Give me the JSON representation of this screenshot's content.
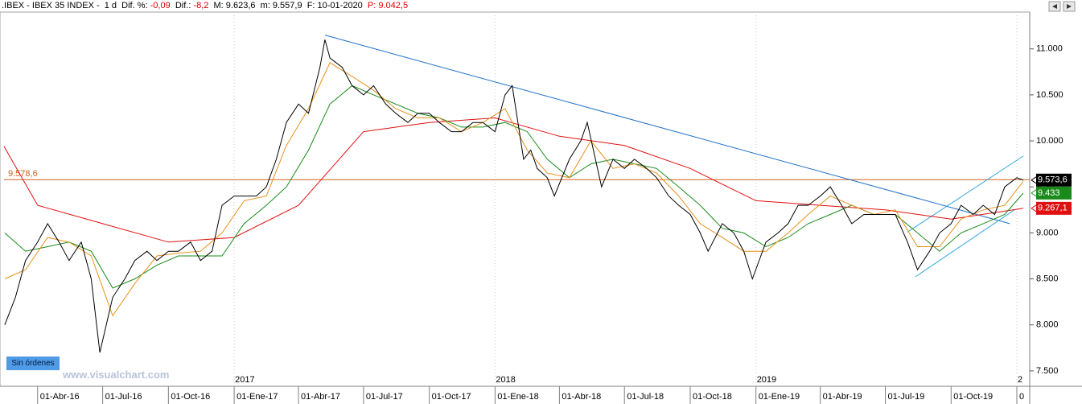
{
  "header": {
    "parts": [
      {
        "text": ".IBEX - IBEX 35 INDEX -  1 d  Dif. %: ",
        "color": "#000000"
      },
      {
        "text": "-0,09",
        "color": "#e00000"
      },
      {
        "text": "  Dif.: ",
        "color": "#000000"
      },
      {
        "text": "-8,2",
        "color": "#e00000"
      },
      {
        "text": "  M: 9.623,6  m: 9.557,9  F: 10-01-2020  ",
        "color": "#000000"
      },
      {
        "text": "P: 9.042,5",
        "color": "#e00000"
      }
    ]
  },
  "orders_button": "Sin órdenes",
  "watermark": "www.visualchart.com",
  "chart_data": {
    "type": "line",
    "xlim": [
      "2016-02-14",
      "2020-01-10"
    ],
    "ylim": [
      7350,
      11400
    ],
    "yticks": [
      {
        "value": 7500,
        "label": "7.500"
      },
      {
        "value": 8000,
        "label": "8.000"
      },
      {
        "value": 8500,
        "label": "8.500"
      },
      {
        "value": 9000,
        "label": "9.000"
      },
      {
        "value": 9500,
        "label": "9.500"
      },
      {
        "value": 10000,
        "label": "10.000"
      },
      {
        "value": 10500,
        "label": "10.500"
      },
      {
        "value": 11000,
        "label": "11.000"
      }
    ],
    "xticks": [
      {
        "value": "2016-04-01",
        "label": "01-Abr-16"
      },
      {
        "value": "2016-07-01",
        "label": "01-Jul-16"
      },
      {
        "value": "2016-10-01",
        "label": "01-Oct-16"
      },
      {
        "value": "2017-01-01",
        "label": "01-Ene-17"
      },
      {
        "value": "2017-04-01",
        "label": "01-Abr-17"
      },
      {
        "value": "2017-07-01",
        "label": "01-Jul-17"
      },
      {
        "value": "2017-10-01",
        "label": "01-Oct-17"
      },
      {
        "value": "2018-01-01",
        "label": "01-Ene-18"
      },
      {
        "value": "2018-04-01",
        "label": "01-Abr-18"
      },
      {
        "value": "2018-07-01",
        "label": "01-Jul-18"
      },
      {
        "value": "2018-10-01",
        "label": "01-Oct-18"
      },
      {
        "value": "2019-01-01",
        "label": "01-Ene-19"
      },
      {
        "value": "2019-04-01",
        "label": "01-Abr-19"
      },
      {
        "value": "2019-07-01",
        "label": "01-Jul-19"
      },
      {
        "value": "2019-10-01",
        "label": "01-Oct-19"
      },
      {
        "value": "2020-01-01",
        "label": "0"
      }
    ],
    "year_markers": [
      {
        "value": "2017-01-01",
        "label": "2017"
      },
      {
        "value": "2018-01-01",
        "label": "2018"
      },
      {
        "value": "2019-01-01",
        "label": "2019"
      },
      {
        "value": "2020-01-01",
        "label": "2"
      }
    ],
    "series": [
      {
        "color": "#000000",
        "width": 1,
        "x": [
          "2016-02-15",
          "2016-03-01",
          "2016-03-15",
          "2016-04-01",
          "2016-04-15",
          "2016-05-01",
          "2016-05-15",
          "2016-06-01",
          "2016-06-15",
          "2016-06-27",
          "2016-07-15",
          "2016-08-01",
          "2016-08-15",
          "2016-09-01",
          "2016-09-15",
          "2016-10-01",
          "2016-10-15",
          "2016-11-01",
          "2016-11-15",
          "2016-12-01",
          "2016-12-15",
          "2017-01-01",
          "2017-01-15",
          "2017-02-01",
          "2017-02-15",
          "2017-03-01",
          "2017-03-15",
          "2017-04-01",
          "2017-04-15",
          "2017-05-01",
          "2017-05-08",
          "2017-05-15",
          "2017-06-01",
          "2017-06-15",
          "2017-07-01",
          "2017-07-15",
          "2017-08-01",
          "2017-08-15",
          "2017-09-01",
          "2017-09-15",
          "2017-10-01",
          "2017-10-15",
          "2017-11-01",
          "2017-11-15",
          "2017-12-01",
          "2017-12-15",
          "2018-01-01",
          "2018-01-15",
          "2018-01-25",
          "2018-02-10",
          "2018-02-20",
          "2018-03-01",
          "2018-03-15",
          "2018-03-25",
          "2018-04-15",
          "2018-05-01",
          "2018-05-10",
          "2018-05-30",
          "2018-06-15",
          "2018-07-01",
          "2018-07-15",
          "2018-08-01",
          "2018-08-15",
          "2018-09-01",
          "2018-09-15",
          "2018-10-01",
          "2018-10-15",
          "2018-10-26",
          "2018-11-15",
          "2018-12-01",
          "2018-12-15",
          "2018-12-27",
          "2019-01-15",
          "2019-02-01",
          "2019-02-15",
          "2019-03-01",
          "2019-03-15",
          "2019-04-01",
          "2019-04-15",
          "2019-05-01",
          "2019-05-15",
          "2019-06-01",
          "2019-06-15",
          "2019-07-01",
          "2019-07-15",
          "2019-08-01",
          "2019-08-15",
          "2019-09-01",
          "2019-09-15",
          "2019-10-01",
          "2019-10-15",
          "2019-11-01",
          "2019-11-15",
          "2019-12-01",
          "2019-12-15",
          "2020-01-01",
          "2020-01-10"
        ],
        "values": [
          8000,
          8300,
          8700,
          8900,
          9100,
          8900,
          8700,
          8900,
          8500,
          7700,
          8300,
          8500,
          8700,
          8800,
          8700,
          8800,
          8800,
          8900,
          8700,
          8800,
          9300,
          9400,
          9400,
          9400,
          9500,
          9800,
          10200,
          10400,
          10300,
          10800,
          11100,
          10900,
          10800,
          10600,
          10500,
          10600,
          10400,
          10300,
          10200,
          10300,
          10300,
          10200,
          10100,
          10100,
          10200,
          10200,
          10100,
          10500,
          10600,
          9800,
          9900,
          9700,
          9600,
          9400,
          9800,
          10000,
          10200,
          9500,
          9800,
          9700,
          9800,
          9700,
          9600,
          9400,
          9300,
          9200,
          9000,
          8800,
          9100,
          9000,
          8800,
          8500,
          8900,
          9000,
          9100,
          9300,
          9300,
          9400,
          9500,
          9300,
          9100,
          9200,
          9200,
          9200,
          9200,
          8900,
          8600,
          8800,
          9000,
          9100,
          9300,
          9200,
          9300,
          9200,
          9500,
          9600,
          9573.6
        ],
        "value_labels": [
          null,
          null,
          null,
          null,
          null,
          null,
          null,
          null,
          null,
          null,
          null,
          null,
          null,
          null,
          null,
          null,
          null,
          null,
          null,
          null,
          null,
          null,
          null,
          null,
          null,
          null,
          null,
          null,
          null,
          null,
          null,
          null,
          null,
          null,
          null,
          null,
          null,
          null,
          null,
          null,
          null,
          null,
          null,
          null,
          null,
          null,
          null,
          null,
          null,
          null,
          null,
          null,
          null,
          null,
          null,
          null,
          null,
          null,
          null,
          null,
          null,
          null,
          null,
          null,
          null,
          null,
          null,
          null,
          null,
          null,
          null,
          null,
          null,
          null,
          null,
          null,
          null,
          null,
          null,
          null,
          null,
          null,
          null,
          null,
          null,
          null,
          null,
          null,
          null,
          null,
          null,
          null,
          null,
          null,
          null,
          null,
          "9.573,6"
        ],
        "label_bg": "#000000"
      },
      {
        "color": "#e8901a",
        "width": 1,
        "x": [
          "2016-02-15",
          "2016-03-15",
          "2016-04-15",
          "2016-05-15",
          "2016-06-15",
          "2016-07-15",
          "2016-08-15",
          "2016-09-15",
          "2016-10-15",
          "2016-11-15",
          "2016-12-15",
          "2017-01-15",
          "2017-02-15",
          "2017-03-15",
          "2017-04-15",
          "2017-05-15",
          "2017-06-15",
          "2017-07-15",
          "2017-08-15",
          "2017-09-15",
          "2017-10-15",
          "2017-11-15",
          "2017-12-15",
          "2018-01-15",
          "2018-02-15",
          "2018-03-15",
          "2018-04-15",
          "2018-05-15",
          "2018-06-15",
          "2018-07-15",
          "2018-08-15",
          "2018-09-15",
          "2018-10-15",
          "2018-11-15",
          "2018-12-15",
          "2019-01-15",
          "2019-02-15",
          "2019-03-15",
          "2019-04-15",
          "2019-05-15",
          "2019-06-15",
          "2019-07-15",
          "2019-08-15",
          "2019-09-15",
          "2019-10-15",
          "2019-11-15",
          "2019-12-15",
          "2020-01-10"
        ],
        "values": [
          8500,
          8600,
          8950,
          8900,
          8750,
          8100,
          8450,
          8750,
          8780,
          8800,
          9000,
          9350,
          9400,
          9950,
          10350,
          10850,
          10700,
          10550,
          10350,
          10250,
          10250,
          10100,
          10200,
          10350,
          9900,
          9650,
          9600,
          10000,
          9700,
          9750,
          9650,
          9400,
          9100,
          8950,
          8800,
          8800,
          9000,
          9200,
          9400,
          9300,
          9200,
          9250,
          8850,
          8850,
          9150,
          9250,
          9300,
          9560
        ]
      },
      {
        "color": "#1a8a1a",
        "width": 1,
        "x": [
          "2016-02-15",
          "2016-03-15",
          "2016-04-15",
          "2016-05-15",
          "2016-06-15",
          "2016-07-15",
          "2016-08-15",
          "2016-09-15",
          "2016-10-15",
          "2016-11-15",
          "2016-12-15",
          "2017-01-15",
          "2017-02-15",
          "2017-03-15",
          "2017-04-15",
          "2017-05-15",
          "2017-06-15",
          "2017-07-15",
          "2017-08-15",
          "2017-09-15",
          "2017-10-15",
          "2017-11-15",
          "2017-12-15",
          "2018-01-15",
          "2018-02-15",
          "2018-03-15",
          "2018-04-15",
          "2018-05-15",
          "2018-06-15",
          "2018-07-15",
          "2018-08-15",
          "2018-09-15",
          "2018-10-15",
          "2018-11-15",
          "2018-12-15",
          "2019-01-15",
          "2019-02-15",
          "2019-03-15",
          "2019-04-15",
          "2019-05-15",
          "2019-06-15",
          "2019-07-15",
          "2019-08-15",
          "2019-09-15",
          "2019-10-15",
          "2019-11-15",
          "2019-12-15",
          "2020-01-10"
        ],
        "values": [
          9000,
          8800,
          8850,
          8900,
          8800,
          8400,
          8500,
          8650,
          8750,
          8750,
          8750,
          9100,
          9300,
          9500,
          9900,
          10400,
          10600,
          10500,
          10400,
          10300,
          10250,
          10150,
          10150,
          10200,
          10100,
          9800,
          9600,
          9750,
          9800,
          9750,
          9700,
          9500,
          9300,
          9050,
          9000,
          8850,
          8950,
          9100,
          9200,
          9300,
          9200,
          9200,
          9000,
          8800,
          9000,
          9100,
          9200,
          9433
        ],
        "value_labels": [
          null,
          null,
          null,
          null,
          null,
          null,
          null,
          null,
          null,
          null,
          null,
          null,
          null,
          null,
          null,
          null,
          null,
          null,
          null,
          null,
          null,
          null,
          null,
          null,
          null,
          null,
          null,
          null,
          null,
          null,
          null,
          null,
          null,
          null,
          null,
          null,
          null,
          null,
          null,
          null,
          null,
          null,
          null,
          null,
          null,
          null,
          null,
          "9.433"
        ],
        "label_bg": "#1a8a1a"
      },
      {
        "color": "#e01010",
        "width": 1,
        "x": [
          "2016-02-14",
          "2016-04-01",
          "2016-07-01",
          "2016-10-01",
          "2017-01-01",
          "2017-04-01",
          "2017-07-01",
          "2017-10-01",
          "2018-01-01",
          "2018-04-01",
          "2018-07-01",
          "2018-10-01",
          "2019-01-01",
          "2019-04-01",
          "2019-07-01",
          "2019-10-01",
          "2020-01-10"
        ],
        "values": [
          9940,
          9300,
          9100,
          8900,
          8950,
          9300,
          10100,
          10200,
          10250,
          10050,
          9950,
          9700,
          9350,
          9300,
          9250,
          9150,
          9267.1
        ],
        "value_labels": [
          null,
          null,
          null,
          null,
          null,
          null,
          null,
          null,
          null,
          null,
          null,
          null,
          null,
          null,
          null,
          null,
          "9.267,1"
        ],
        "label_bg": "#e01010"
      }
    ],
    "trend_lines": [
      {
        "color": "#1f6fc8",
        "x": [
          "2017-05-08",
          "2019-12-22"
        ],
        "values": [
          11150,
          9100
        ]
      },
      {
        "color": "#35a8e0",
        "x": [
          "2019-08-12",
          "2019-12-29"
        ],
        "values": [
          8522,
          9252
        ]
      },
      {
        "color": "#35a8e0",
        "x": [
          "2019-08-01",
          "2020-01-10"
        ],
        "values": [
          9009,
          9835
        ]
      }
    ],
    "hlines": [
      {
        "value": 9578.6,
        "label": "9.578,6",
        "color": "#d2601e"
      }
    ]
  }
}
